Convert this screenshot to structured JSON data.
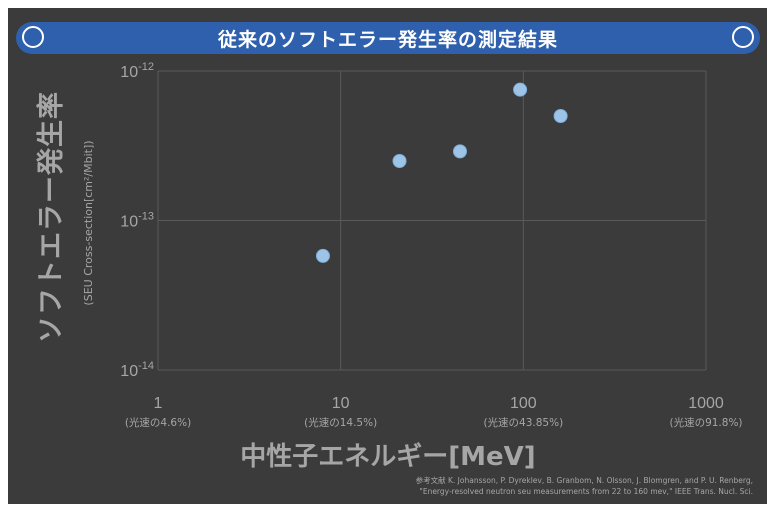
{
  "banner": {
    "title": "従来のソフトエラー発生率の測定結果"
  },
  "chart_data": {
    "type": "scatter",
    "title": "従来のソフトエラー発生率の測定結果",
    "xlabel": "中性子エネルギー[MeV]",
    "ylabel": "ソフトエラー発生率",
    "ylabel_sub": "(SEU Cross-section[cm²/Mbit])",
    "x_scale": "log",
    "y_scale": "log",
    "xlim": [
      1,
      1000
    ],
    "ylim": [
      1e-14,
      1e-12
    ],
    "grid": true,
    "x_ticks": [
      {
        "label": "1",
        "sublabel": "(光速の4.6%)"
      },
      {
        "label": "10",
        "sublabel": "(光速の14.5%)"
      },
      {
        "label": "100",
        "sublabel": "(光速の43.85%)"
      },
      {
        "label": "1000",
        "sublabel": "(光速の91.8%)"
      }
    ],
    "y_ticks": [
      {
        "base": "10",
        "exp": "-14"
      },
      {
        "base": "10",
        "exp": "-13"
      },
      {
        "base": "10",
        "exp": "-12"
      }
    ],
    "points": [
      {
        "x": 8,
        "y": 5.8e-14
      },
      {
        "x": 21,
        "y": 2.5e-13
      },
      {
        "x": 45,
        "y": 2.9e-13
      },
      {
        "x": 96,
        "y": 7.5e-13
      },
      {
        "x": 160,
        "y": 5e-13
      }
    ],
    "colors": {
      "point": "#9dc3e6",
      "grid": "#5a5a5a",
      "text": "#a6a6a6",
      "background": "#3b3b3b"
    }
  },
  "reference": {
    "line1": "参考文献 K. Johansson, P. Dyreklev, B. Granbom, N. Olsson, J. Blomgren, and P. U. Renberg,",
    "line2": "\"Energy-resolved neutron seu measurements from 22 to 160 mev,\" IEEE Trans. Nucl. Sci."
  }
}
